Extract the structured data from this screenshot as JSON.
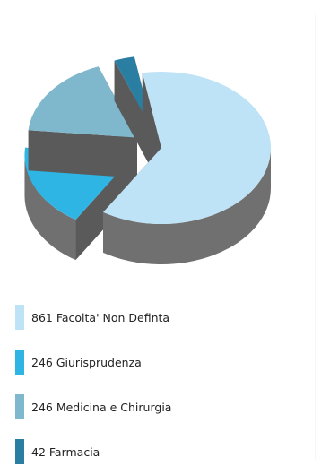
{
  "chart_data": {
    "type": "pie",
    "title": "",
    "slices": [
      {
        "value": 861,
        "name": "Facolta' Non Definta",
        "label": "861 Facolta' Non Definta",
        "color": "#bfe3f6"
      },
      {
        "value": 246,
        "name": "Giurisprudenza",
        "label": "246 Giurisprudenza",
        "color": "#2fb5e4"
      },
      {
        "value": 246,
        "name": "Medicina e Chirurgia",
        "label": "246 Medicina e Chirurgia",
        "color": "#7fb7cc"
      },
      {
        "value": 42,
        "name": "Farmacia",
        "label": "42 Farmacia",
        "color": "#2a7ea2"
      }
    ],
    "legend_position": "bottom",
    "style": "3d-exploded"
  }
}
